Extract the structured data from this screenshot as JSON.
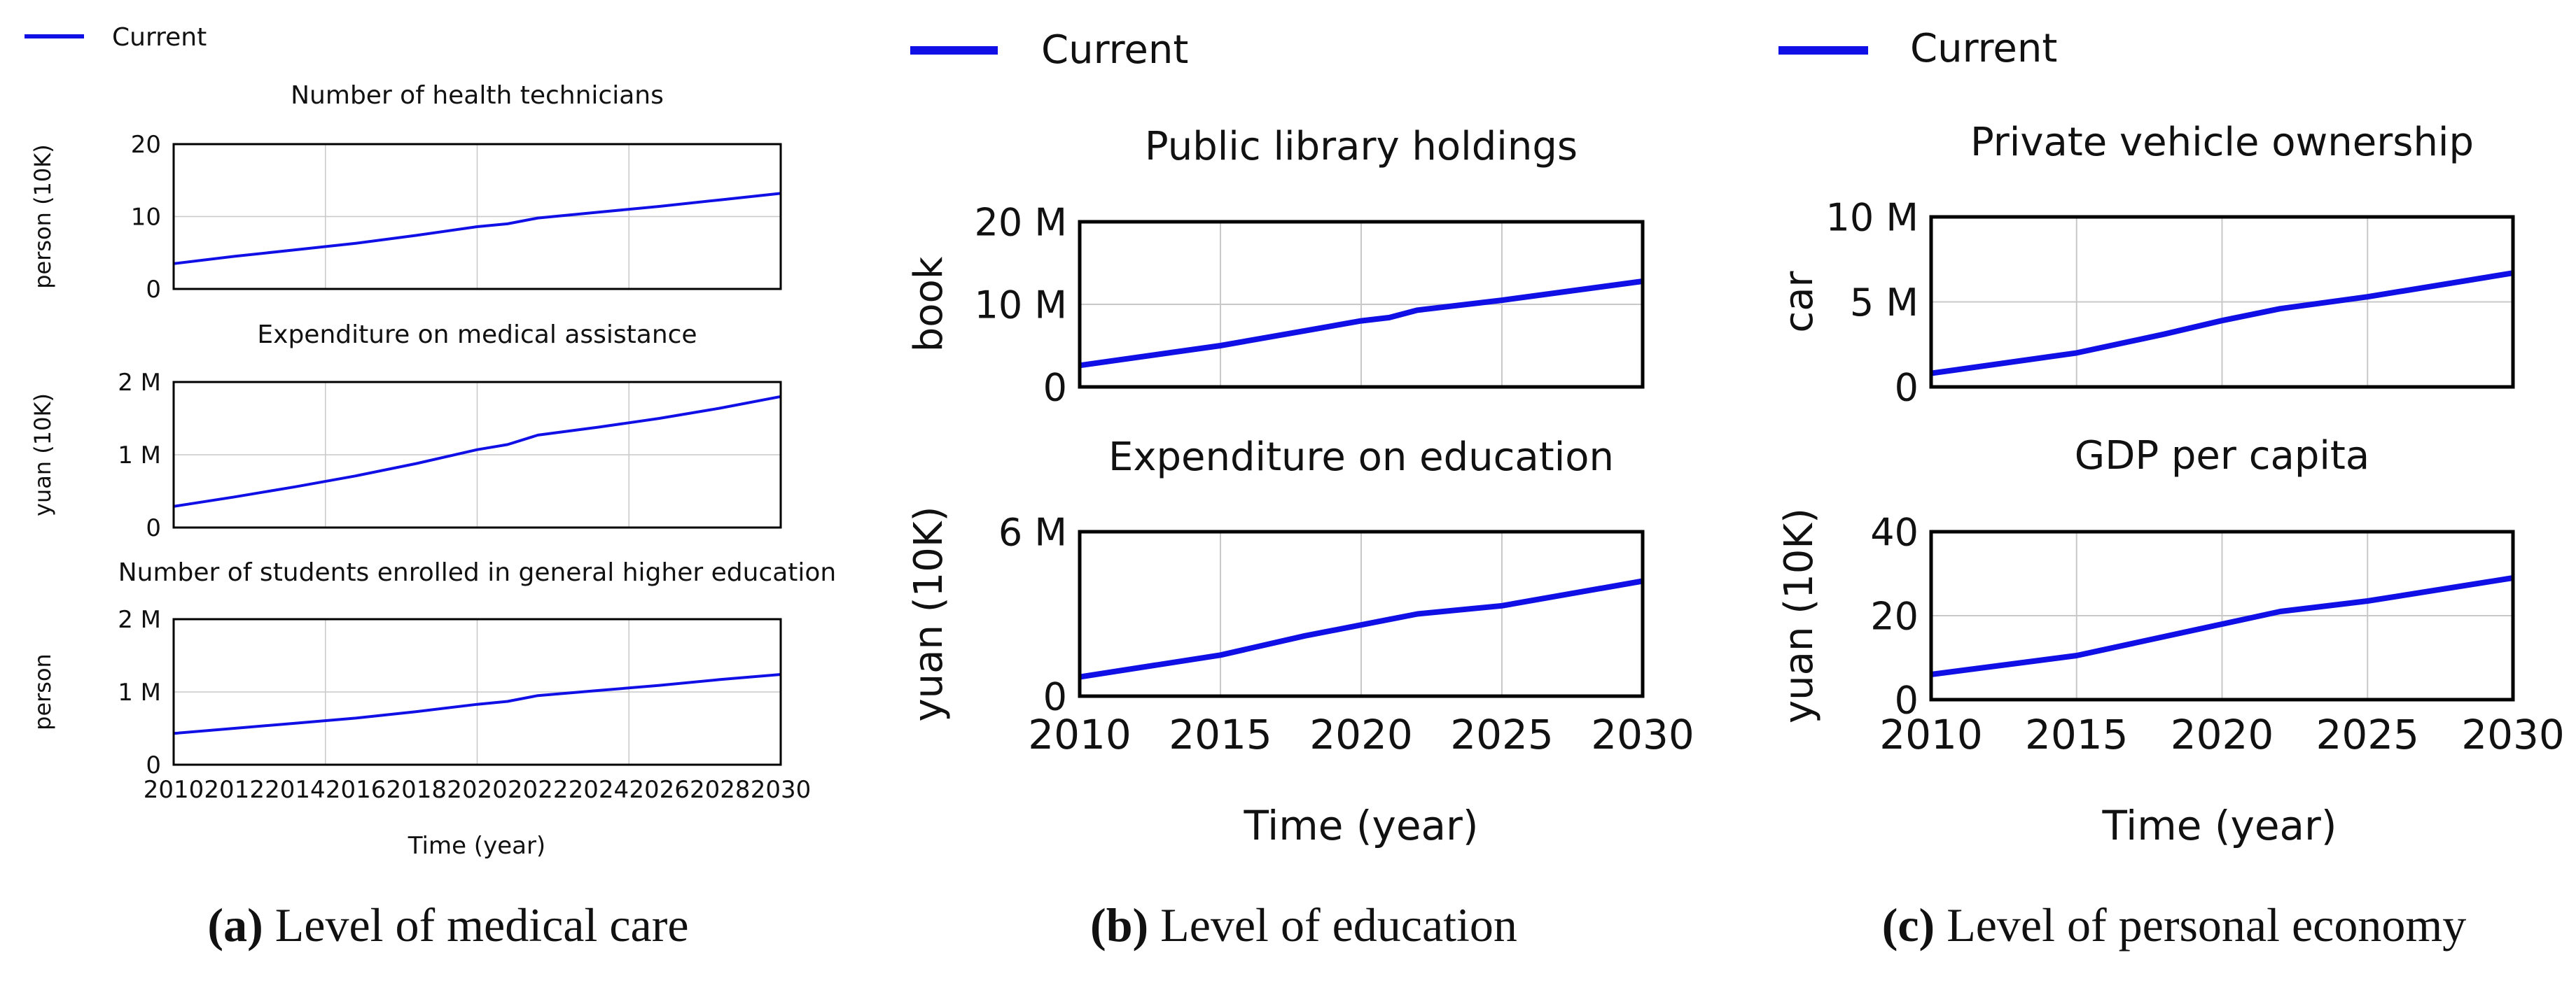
{
  "figure": {
    "colors": {
      "line": "#1010e6",
      "frame": "#000000",
      "grid": "#c8c8c8",
      "text": "#111111"
    },
    "panels": [
      {
        "id": "a",
        "legend": "Current",
        "xlabel": "Time (year)",
        "caption_letter": "(a)",
        "caption_text": " Level of medical care",
        "chart_data": [
          {
            "type": "line",
            "title": "Number of health technicians",
            "ylabel": "person (10K)",
            "ylim": [
              0,
              20
            ],
            "yticks": [
              {
                "v": 0,
                "label": "0"
              },
              {
                "v": 10,
                "label": "10"
              },
              {
                "v": 20,
                "label": "20"
              }
            ],
            "xlim": [
              2010,
              2030
            ],
            "xticks": [],
            "grid": true,
            "series": [
              {
                "name": "Current",
                "x": [
                  2010,
                  2012,
                  2014,
                  2016,
                  2018,
                  2020,
                  2021,
                  2022,
                  2024,
                  2026,
                  2028,
                  2030
                ],
                "y": [
                  3.5,
                  4.5,
                  5.4,
                  6.3,
                  7.4,
                  8.6,
                  9.0,
                  9.8,
                  10.6,
                  11.4,
                  12.3,
                  13.2
                ]
              }
            ]
          },
          {
            "type": "line",
            "title": "Expenditure on medical assistance",
            "ylabel": "yuan (10K)",
            "ylim": [
              0,
              2000000
            ],
            "yticks": [
              {
                "v": 0,
                "label": "0"
              },
              {
                "v": 1000000,
                "label": "1 M"
              },
              {
                "v": 2000000,
                "label": "2 M"
              }
            ],
            "xlim": [
              2010,
              2030
            ],
            "xticks": [],
            "grid": true,
            "series": [
              {
                "name": "Current",
                "x": [
                  2010,
                  2012,
                  2014,
                  2016,
                  2018,
                  2020,
                  2021,
                  2022,
                  2024,
                  2026,
                  2028,
                  2030
                ],
                "y": [
                  290000,
                  420000,
                  560000,
                  710000,
                  880000,
                  1070000,
                  1140000,
                  1270000,
                  1380000,
                  1500000,
                  1640000,
                  1800000
                ]
              }
            ]
          },
          {
            "type": "line",
            "title": "Number of students enrolled in general higher education",
            "ylabel": "person",
            "ylim": [
              0,
              2000000
            ],
            "yticks": [
              {
                "v": 0,
                "label": "0"
              },
              {
                "v": 1000000,
                "label": "1 M"
              },
              {
                "v": 2000000,
                "label": "2 M"
              }
            ],
            "xlim": [
              2010,
              2030
            ],
            "xticks": [
              2010,
              2012,
              2014,
              2016,
              2018,
              2020,
              2022,
              2024,
              2026,
              2028,
              2030
            ],
            "grid": true,
            "series": [
              {
                "name": "Current",
                "x": [
                  2010,
                  2012,
                  2014,
                  2016,
                  2018,
                  2020,
                  2021,
                  2022,
                  2024,
                  2026,
                  2028,
                  2030
                ],
                "y": [
                  430000,
                  500000,
                  570000,
                  640000,
                  730000,
                  830000,
                  870000,
                  950000,
                  1020000,
                  1090000,
                  1170000,
                  1240000
                ]
              }
            ]
          }
        ]
      },
      {
        "id": "b",
        "legend": "Current",
        "xlabel": "Time (year)",
        "caption_letter": "(b)",
        "caption_text": " Level of education",
        "chart_data": [
          {
            "type": "line",
            "title": "Public library holdings",
            "ylabel": "book",
            "ylim": [
              0,
              20000000
            ],
            "yticks": [
              {
                "v": 0,
                "label": "0"
              },
              {
                "v": 10000000,
                "label": "10 M"
              },
              {
                "v": 20000000,
                "label": "20 M"
              }
            ],
            "xlim": [
              2010,
              2030
            ],
            "xticks": [],
            "grid": true,
            "series": [
              {
                "name": "Current",
                "x": [
                  2010,
                  2015,
                  2018,
                  2020,
                  2021,
                  2022,
                  2025,
                  2030
                ],
                "y": [
                  2600000,
                  5000000,
                  6800000,
                  8000000,
                  8400000,
                  9300000,
                  10500000,
                  12800000
                ]
              }
            ]
          },
          {
            "type": "line",
            "title": "Expenditure on education",
            "ylabel": "yuan (10K)",
            "ylim": [
              0,
              6000000
            ],
            "yticks": [
              {
                "v": 0,
                "label": "0"
              },
              {
                "v": 6000000,
                "label": "6 M"
              }
            ],
            "xlim": [
              2010,
              2030
            ],
            "xticks": [
              2010,
              2015,
              2020,
              2025,
              2030
            ],
            "grid": true,
            "series": [
              {
                "name": "Current",
                "x": [
                  2010,
                  2015,
                  2018,
                  2020,
                  2021,
                  2022,
                  2025,
                  2030
                ],
                "y": [
                  700000,
                  1500000,
                  2200000,
                  2600000,
                  2800000,
                  3000000,
                  3300000,
                  4200000
                ]
              }
            ]
          }
        ]
      },
      {
        "id": "c",
        "legend": "Current",
        "xlabel": "Time (year)",
        "caption_letter": "(c)",
        "caption_text": " Level of personal economy",
        "chart_data": [
          {
            "type": "line",
            "title": "Private vehicle ownership",
            "ylabel": "car",
            "ylim": [
              0,
              10000000
            ],
            "yticks": [
              {
                "v": 0,
                "label": "0"
              },
              {
                "v": 5000000,
                "label": "5 M"
              },
              {
                "v": 10000000,
                "label": "10 M"
              }
            ],
            "xlim": [
              2010,
              2030
            ],
            "xticks": [],
            "grid": true,
            "series": [
              {
                "name": "Current",
                "x": [
                  2010,
                  2015,
                  2018,
                  2020,
                  2022,
                  2025,
                  2030
                ],
                "y": [
                  800000,
                  2000000,
                  3100000,
                  3900000,
                  4600000,
                  5300000,
                  6700000
                ]
              }
            ]
          },
          {
            "type": "line",
            "title": "GDP per capita",
            "ylabel": "yuan (10K)",
            "ylim": [
              0,
              40
            ],
            "yticks": [
              {
                "v": 0,
                "label": "0"
              },
              {
                "v": 20,
                "label": "20"
              },
              {
                "v": 40,
                "label": "40"
              }
            ],
            "xlim": [
              2010,
              2030
            ],
            "xticks": [
              2010,
              2015,
              2020,
              2025,
              2030
            ],
            "grid": true,
            "series": [
              {
                "name": "Current",
                "x": [
                  2010,
                  2015,
                  2018,
                  2020,
                  2022,
                  2025,
                  2030
                ],
                "y": [
                  6,
                  10.5,
                  15,
                  18,
                  21,
                  23.5,
                  29
                ]
              }
            ]
          }
        ]
      }
    ]
  }
}
